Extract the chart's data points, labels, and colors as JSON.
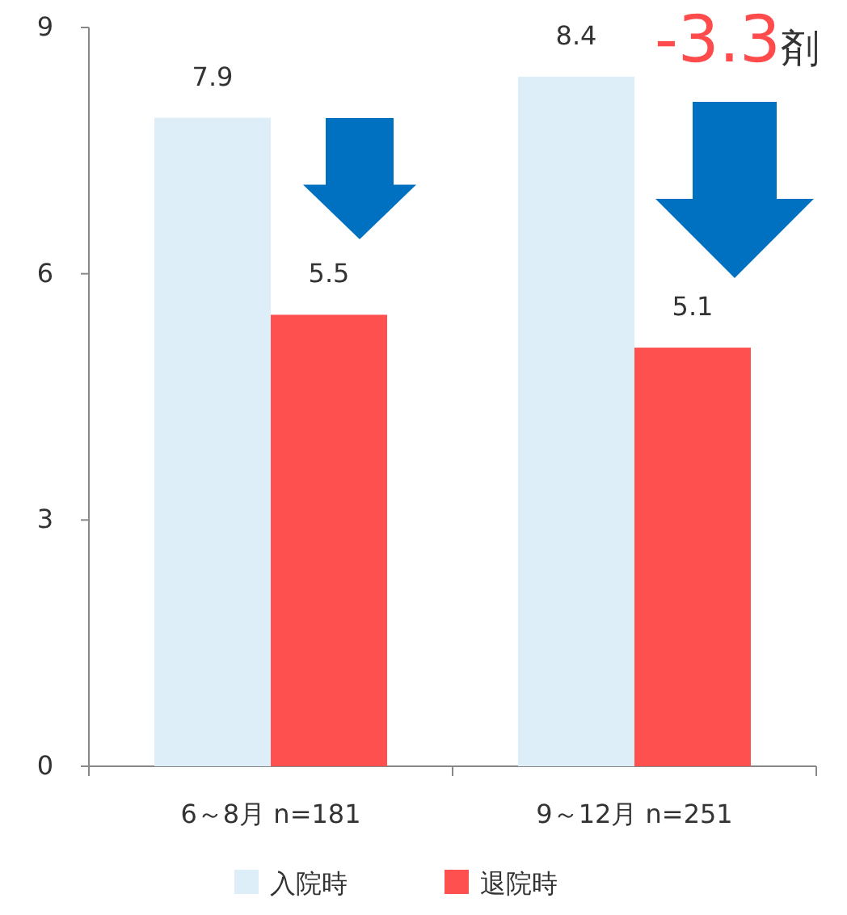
{
  "chart_data": {
    "type": "bar",
    "categories": [
      "6～8月 n=181",
      "9～12月 n=251"
    ],
    "series": [
      {
        "name": "入院時",
        "color": "#ddeef9",
        "values": [
          7.9,
          8.4
        ]
      },
      {
        "name": "退院時",
        "color": "#ff5050",
        "values": [
          5.5,
          5.1
        ]
      }
    ],
    "ylim": [
      0,
      9
    ],
    "yticks": [
      0,
      3,
      6,
      9
    ],
    "grid": false,
    "legend": "bottom",
    "data_labels": true,
    "annotations": [
      "-3.3剤"
    ]
  }
}
